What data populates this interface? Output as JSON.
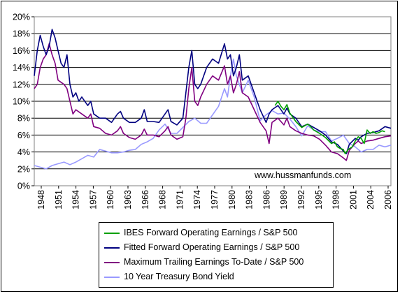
{
  "watermark": "www.hussmanfunds.com",
  "chart_data": {
    "type": "line",
    "ylim": [
      0,
      20
    ],
    "y_ticks": [
      0,
      2,
      4,
      6,
      8,
      10,
      12,
      14,
      16,
      18,
      20
    ],
    "y_tick_labels": [
      "0%",
      "2%",
      "4%",
      "6%",
      "8%",
      "10%",
      "12%",
      "14%",
      "16%",
      "18%",
      "20%"
    ],
    "xlim": [
      1948,
      2008
    ],
    "x_tick_labels": [
      "1948",
      "1951",
      "1954",
      "1957",
      "1960",
      "1963",
      "1966",
      "1968",
      "1971",
      "1974",
      "1977",
      "1980",
      "1983",
      "1986",
      "1989",
      "1992",
      "1995",
      "1998",
      "2001",
      "2004",
      "2006"
    ],
    "grid": "horizontal",
    "legend_position": "bottom",
    "series": [
      {
        "name": "IBES Forward Operating Earnings / S&P 500",
        "color": "#00A000",
        "x": [
          1988.5,
          1989.0,
          1989.5,
          1990.0,
          1990.5,
          1991.0,
          1992.0,
          1993.0,
          1994.0,
          1994.5,
          1995.0,
          1996.0,
          1997.0,
          1998.0,
          1998.5,
          1999.0,
          1999.5,
          2000.0,
          2000.3,
          2000.7,
          2001.0,
          2001.5,
          2002.0,
          2002.5,
          2003.0,
          2003.5,
          2004.0,
          2004.5,
          2005.0,
          2005.5,
          2006.0,
          2006.5,
          2007.0
        ],
        "y": [
          9.5,
          10.0,
          9.4,
          9.0,
          9.6,
          8.6,
          7.6,
          6.9,
          7.3,
          7.0,
          6.6,
          6.2,
          5.7,
          5.0,
          5.2,
          4.6,
          4.4,
          4.3,
          3.8,
          4.2,
          4.4,
          4.6,
          5.3,
          5.8,
          5.6,
          5.0,
          6.6,
          6.2,
          6.4,
          6.2,
          6.3,
          6.5,
          6.4
        ]
      },
      {
        "name": "Fitted Forward Operating Earnings / S&P 500",
        "color": "#000080",
        "x": [
          1948.0,
          1948.5,
          1949.0,
          1949.5,
          1950.0,
          1950.5,
          1951.0,
          1951.5,
          1952.0,
          1952.5,
          1953.0,
          1953.5,
          1954.0,
          1954.5,
          1955.0,
          1955.5,
          1956.0,
          1957.0,
          1957.5,
          1958.0,
          1959.0,
          1960.0,
          1961.0,
          1962.0,
          1962.5,
          1963.0,
          1964.0,
          1965.0,
          1966.0,
          1966.5,
          1967.0,
          1968.0,
          1969.0,
          1970.0,
          1970.5,
          1971.0,
          1972.0,
          1973.0,
          1973.5,
          1974.0,
          1974.5,
          1975.0,
          1975.5,
          1976.0,
          1977.0,
          1978.0,
          1979.0,
          1980.0,
          1980.5,
          1981.0,
          1981.5,
          1982.0,
          1982.5,
          1983.0,
          1984.0,
          1985.0,
          1986.0,
          1987.0,
          1987.5,
          1988.0,
          1989.0,
          1990.0,
          1990.5,
          1991.0,
          1992.0,
          1993.0,
          1994.0,
          1995.0,
          1996.0,
          1997.0,
          1998.0,
          1999.0,
          2000.0,
          2000.5,
          2001.0,
          2002.0,
          2002.5,
          2003.0,
          2004.0,
          2005.0,
          2006.0,
          2007.0,
          2008.0
        ],
        "y": [
          13.0,
          16.0,
          17.8,
          16.5,
          15.5,
          16.5,
          18.5,
          17.5,
          16.0,
          14.5,
          14.0,
          15.5,
          12.0,
          10.5,
          11.0,
          10.0,
          10.5,
          9.5,
          10.0,
          8.5,
          8.0,
          8.0,
          7.5,
          8.5,
          8.8,
          8.0,
          7.5,
          7.5,
          8.0,
          9.0,
          7.6,
          7.6,
          7.5,
          8.5,
          9.0,
          7.6,
          7.2,
          8.0,
          11.0,
          14.0,
          16.0,
          12.0,
          11.5,
          12.0,
          14.0,
          15.0,
          14.5,
          16.8,
          15.0,
          15.5,
          13.0,
          14.0,
          15.5,
          12.5,
          13.0,
          11.0,
          9.0,
          7.5,
          8.5,
          9.0,
          9.5,
          8.5,
          9.2,
          8.5,
          8.0,
          7.0,
          7.3,
          6.9,
          6.5,
          6.0,
          5.2,
          4.9,
          4.1,
          3.8,
          4.9,
          5.6,
          5.4,
          5.8,
          6.2,
          6.3,
          6.5,
          7.0,
          6.8
        ]
      },
      {
        "name": "Maximum Trailing Earnings To-Date / S&P 500",
        "color": "#800080",
        "x": [
          1948.0,
          1948.5,
          1949.0,
          1949.5,
          1950.0,
          1950.5,
          1951.0,
          1951.5,
          1952.0,
          1953.0,
          1953.5,
          1954.0,
          1954.5,
          1955.0,
          1956.0,
          1957.0,
          1957.5,
          1958.0,
          1959.0,
          1960.0,
          1961.0,
          1962.0,
          1962.5,
          1963.0,
          1964.0,
          1965.0,
          1966.0,
          1966.5,
          1967.0,
          1968.0,
          1969.0,
          1970.0,
          1970.5,
          1971.0,
          1972.0,
          1973.0,
          1973.5,
          1974.0,
          1974.5,
          1975.0,
          1975.5,
          1976.0,
          1977.0,
          1978.0,
          1979.0,
          1980.0,
          1980.5,
          1981.0,
          1981.5,
          1982.0,
          1982.5,
          1983.0,
          1984.0,
          1985.0,
          1986.0,
          1987.0,
          1987.5,
          1988.0,
          1989.0,
          1990.0,
          1990.5,
          1991.0,
          1992.0,
          1993.0,
          1994.0,
          1995.0,
          1996.0,
          1997.0,
          1998.0,
          1999.0,
          2000.0,
          2000.5,
          2001.0,
          2002.0,
          2002.5,
          2003.0,
          2004.0,
          2005.0,
          2006.0,
          2007.0,
          2008.0
        ],
        "y": [
          11.5,
          12.0,
          14.0,
          15.0,
          15.5,
          16.8,
          15.5,
          14.5,
          12.5,
          12.0,
          11.5,
          10.0,
          8.5,
          9.0,
          8.5,
          8.0,
          8.5,
          7.0,
          6.8,
          6.2,
          6.0,
          6.5,
          7.0,
          6.2,
          5.7,
          5.5,
          6.0,
          6.7,
          6.0,
          6.0,
          5.8,
          6.5,
          7.0,
          6.0,
          5.5,
          5.8,
          8.0,
          11.5,
          14.0,
          10.0,
          9.5,
          10.5,
          12.0,
          13.0,
          12.5,
          14.2,
          12.0,
          13.0,
          11.0,
          12.0,
          13.5,
          11.0,
          10.5,
          9.0,
          7.5,
          6.5,
          5.0,
          7.5,
          8.0,
          7.2,
          8.0,
          7.0,
          6.5,
          6.2,
          6.0,
          5.9,
          5.5,
          4.8,
          4.0,
          3.8,
          3.3,
          3.0,
          4.2,
          5.0,
          5.3,
          5.0,
          5.3,
          5.4,
          5.6,
          5.8,
          5.9
        ]
      },
      {
        "name": "10 Year Treasury Bond Yield",
        "color": "#9999FF",
        "x": [
          1948.0,
          1949.0,
          1950.0,
          1951.0,
          1952.0,
          1953.0,
          1954.0,
          1955.0,
          1956.0,
          1957.0,
          1958.0,
          1959.0,
          1960.0,
          1961.0,
          1962.0,
          1963.0,
          1964.0,
          1965.0,
          1966.0,
          1967.0,
          1968.0,
          1969.0,
          1970.0,
          1971.0,
          1972.0,
          1973.0,
          1974.0,
          1975.0,
          1976.0,
          1977.0,
          1978.0,
          1979.0,
          1980.0,
          1980.5,
          1981.0,
          1981.5,
          1982.0,
          1983.0,
          1984.0,
          1985.0,
          1986.0,
          1987.0,
          1988.0,
          1989.0,
          1990.0,
          1991.0,
          1992.0,
          1993.0,
          1994.0,
          1995.0,
          1996.0,
          1997.0,
          1998.0,
          1999.0,
          2000.0,
          2001.0,
          2002.0,
          2003.0,
          2004.0,
          2005.0,
          2006.0,
          2007.0,
          2008.0
        ],
        "y": [
          2.4,
          2.2,
          2.0,
          2.4,
          2.6,
          2.8,
          2.5,
          2.8,
          3.2,
          3.6,
          3.4,
          4.3,
          4.1,
          3.9,
          3.9,
          4.0,
          4.2,
          4.3,
          4.9,
          5.2,
          5.6,
          6.6,
          7.3,
          6.2,
          6.2,
          6.9,
          7.6,
          8.0,
          7.4,
          7.4,
          8.4,
          9.4,
          11.5,
          10.5,
          13.0,
          15.0,
          13.0,
          11.0,
          12.5,
          10.5,
          7.7,
          8.4,
          8.9,
          8.5,
          8.6,
          7.9,
          7.0,
          5.9,
          7.1,
          6.6,
          6.4,
          6.4,
          5.3,
          5.6,
          6.0,
          5.0,
          4.6,
          4.0,
          4.3,
          4.3,
          4.8,
          4.6,
          4.8
        ]
      }
    ]
  }
}
